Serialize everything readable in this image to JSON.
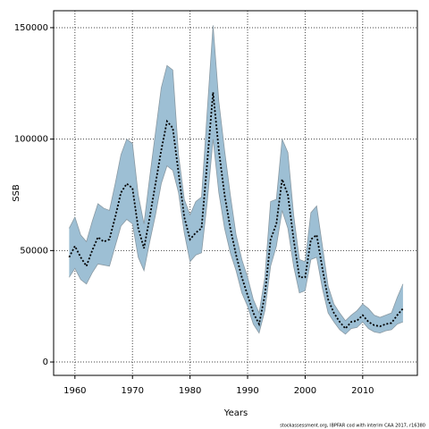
{
  "chart_data": {
    "type": "line",
    "xlabel": "Years",
    "ylabel": "SSB",
    "source": "stockassessment.org, IBPFAR cod with interim CAA 2017, r16380",
    "x": [
      1959,
      1960,
      1961,
      1962,
      1963,
      1964,
      1965,
      1966,
      1967,
      1968,
      1969,
      1970,
      1971,
      1972,
      1973,
      1974,
      1975,
      1976,
      1977,
      1978,
      1979,
      1980,
      1981,
      1982,
      1983,
      1984,
      1985,
      1986,
      1987,
      1988,
      1989,
      1990,
      1991,
      1992,
      1993,
      1994,
      1995,
      1996,
      1997,
      1998,
      1999,
      2000,
      2001,
      2002,
      2003,
      2004,
      2005,
      2006,
      2007,
      2008,
      2009,
      2010,
      2011,
      2012,
      2013,
      2014,
      2015,
      2016,
      2017
    ],
    "values": [
      47000,
      52000,
      47000,
      43000,
      50000,
      56000,
      54000,
      55000,
      65000,
      76000,
      80000,
      78000,
      60000,
      51000,
      65000,
      80000,
      95000,
      108000,
      105000,
      85000,
      65000,
      55000,
      58000,
      60000,
      90000,
      121000,
      95000,
      75000,
      60000,
      48000,
      38000,
      30000,
      22000,
      17000,
      30000,
      55000,
      62000,
      82000,
      75000,
      55000,
      38000,
      38000,
      55000,
      57000,
      42000,
      28000,
      22000,
      18000,
      15000,
      18000,
      18500,
      21000,
      18000,
      16500,
      16000,
      17000,
      17500,
      21000,
      24000
    ],
    "upper": [
      60000,
      65000,
      57000,
      54000,
      63000,
      71000,
      69000,
      68000,
      80000,
      93000,
      100000,
      98000,
      75000,
      62000,
      83000,
      103000,
      123000,
      133000,
      131000,
      93000,
      73000,
      66000,
      72000,
      74000,
      113000,
      151000,
      117000,
      95000,
      75000,
      57000,
      46000,
      38000,
      28000,
      22000,
      38000,
      72000,
      73000,
      100000,
      94000,
      66000,
      46000,
      45000,
      67000,
      70000,
      52000,
      34000,
      26000,
      22000,
      18500,
      21000,
      23000,
      26000,
      24000,
      21000,
      20000,
      21000,
      22000,
      29000,
      35000
    ],
    "lower": [
      38000,
      42000,
      37000,
      35000,
      40000,
      44000,
      43500,
      43000,
      52000,
      61000,
      64000,
      62000,
      47000,
      41000,
      54000,
      66000,
      80000,
      88000,
      86000,
      76000,
      58000,
      45000,
      48000,
      49000,
      72000,
      100000,
      76000,
      60000,
      49000,
      41000,
      31000,
      25000,
      17000,
      13000,
      23000,
      43000,
      52000,
      68000,
      60000,
      43000,
      31000,
      32000,
      46000,
      47000,
      33000,
      22000,
      18000,
      14500,
      12500,
      15000,
      15500,
      18000,
      15000,
      13500,
      13000,
      14000,
      14500,
      17000,
      18000
    ],
    "color": "#000000",
    "band_color": "#9dbfd4",
    "xlim": [
      1956.3,
      2019.5
    ],
    "xticks": [
      1960,
      1970,
      1980,
      1990,
      2000,
      2010
    ],
    "ylim": [
      -6000,
      157600
    ],
    "yticks": [
      0,
      50000,
      100000,
      150000
    ],
    "grid": true
  }
}
